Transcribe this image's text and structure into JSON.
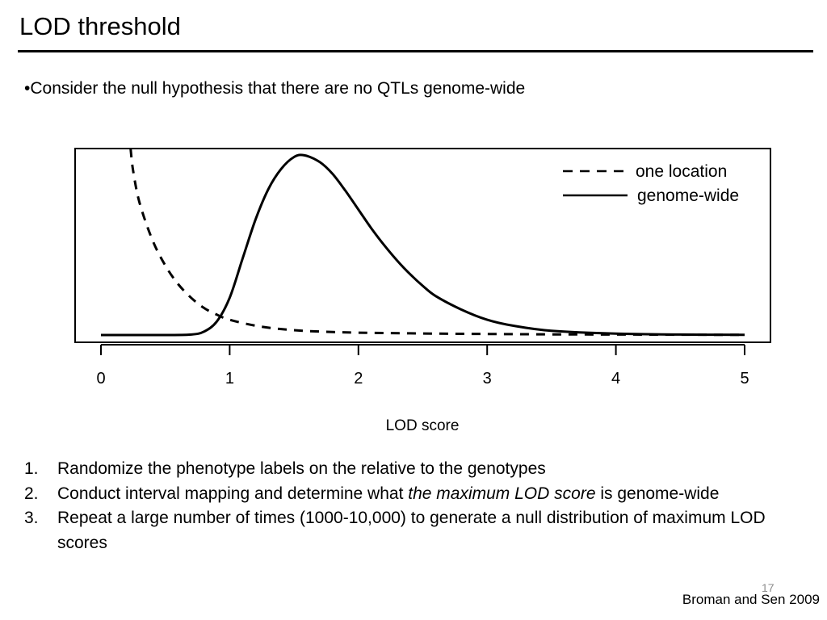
{
  "slide": {
    "title": "LOD threshold",
    "bullet": "•Consider the null hypothesis that there are no QTLs genome-wide",
    "steps": [
      {
        "num": "1.",
        "parts": [
          {
            "text": "Randomize the phenotype labels on the relative to the genotypes"
          }
        ]
      },
      {
        "num": "2.",
        "parts": [
          {
            "text": "Conduct interval mapping and determine what "
          },
          {
            "text": "the maximum LOD score",
            "italic": true
          },
          {
            "text": " is genome-wide"
          }
        ]
      },
      {
        "num": "3.",
        "parts": [
          {
            "text": "Repeat a large number of times (1000-10,000) to generate a null distribution of maximum LOD scores"
          }
        ]
      }
    ],
    "page_number": "17",
    "citation": "Broman and Sen 2009"
  },
  "chart_data": {
    "type": "line",
    "xlabel": "LOD score",
    "ylabel": "",
    "xlim": [
      0,
      5
    ],
    "ylim": [
      0,
      1.1
    ],
    "x_ticks": [
      "0",
      "1",
      "2",
      "3",
      "4",
      "5"
    ],
    "grid": false,
    "legend_position": "top-right",
    "colors": {
      "line": "#000000",
      "frame": "#000000"
    },
    "series": [
      {
        "name": "one location",
        "style": "dashed",
        "x": [
          0.23,
          0.25,
          0.3,
          0.4,
          0.5,
          0.6,
          0.7,
          0.8,
          0.9,
          1.0,
          1.2,
          1.4,
          1.6,
          1.8,
          2.0,
          2.5,
          3.0,
          3.5,
          4.0,
          4.5,
          5.0
        ],
        "y": [
          1.1,
          0.97,
          0.78,
          0.56,
          0.41,
          0.3,
          0.22,
          0.16,
          0.12,
          0.09,
          0.055,
          0.035,
          0.024,
          0.018,
          0.014,
          0.009,
          0.006,
          0.004,
          0.003,
          0.002,
          0.001
        ]
      },
      {
        "name": "genome-wide",
        "style": "solid",
        "x": [
          0.0,
          0.5,
          0.7,
          0.8,
          0.9,
          1.0,
          1.1,
          1.2,
          1.3,
          1.4,
          1.5,
          1.58,
          1.7,
          1.8,
          1.9,
          2.0,
          2.1,
          2.2,
          2.3,
          2.4,
          2.5,
          2.6,
          2.8,
          3.0,
          3.2,
          3.5,
          4.0,
          4.5,
          5.0
        ],
        "y": [
          0.0,
          0.0,
          0.003,
          0.02,
          0.08,
          0.22,
          0.45,
          0.68,
          0.86,
          0.98,
          1.05,
          1.06,
          1.02,
          0.95,
          0.85,
          0.74,
          0.63,
          0.53,
          0.44,
          0.36,
          0.29,
          0.23,
          0.15,
          0.09,
          0.055,
          0.025,
          0.008,
          0.003,
          0.001
        ]
      }
    ]
  }
}
